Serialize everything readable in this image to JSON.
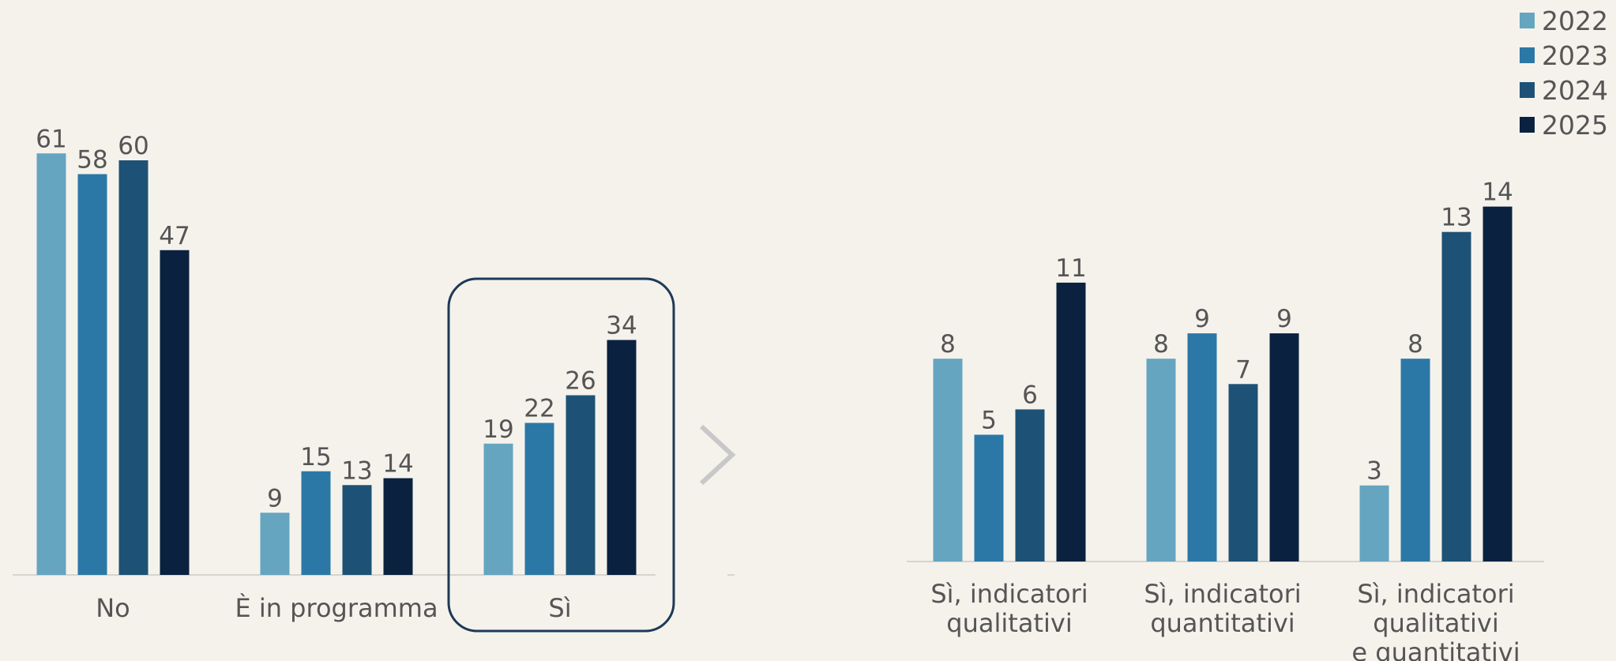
{
  "chart_data": [
    {
      "type": "bar",
      "categories": [
        "No",
        "È in programma",
        "Sì"
      ],
      "series": [
        {
          "name": "2022",
          "color": "#65a5c0",
          "values": [
            61,
            9,
            19
          ]
        },
        {
          "name": "2023",
          "color": "#2b78a6",
          "values": [
            58,
            15,
            22
          ]
        },
        {
          "name": "2024",
          "color": "#1d5276",
          "values": [
            60,
            13,
            26
          ]
        },
        {
          "name": "2025",
          "color": "#0a2240",
          "values": [
            47,
            14,
            34
          ]
        }
      ]
    },
    {
      "type": "bar",
      "categories": [
        [
          "Sì, indicatori",
          "qualitativi"
        ],
        [
          "Sì, indicatori",
          "quantitativi"
        ],
        [
          "Sì, indicatori",
          "qualitativi",
          "e quantitativi"
        ]
      ],
      "series": [
        {
          "values": [
            8,
            8,
            3
          ]
        },
        {
          "values": [
            5,
            9,
            8
          ]
        },
        {
          "values": [
            6,
            7,
            13
          ]
        },
        {
          "values": [
            11,
            9,
            14
          ]
        }
      ]
    }
  ]
}
